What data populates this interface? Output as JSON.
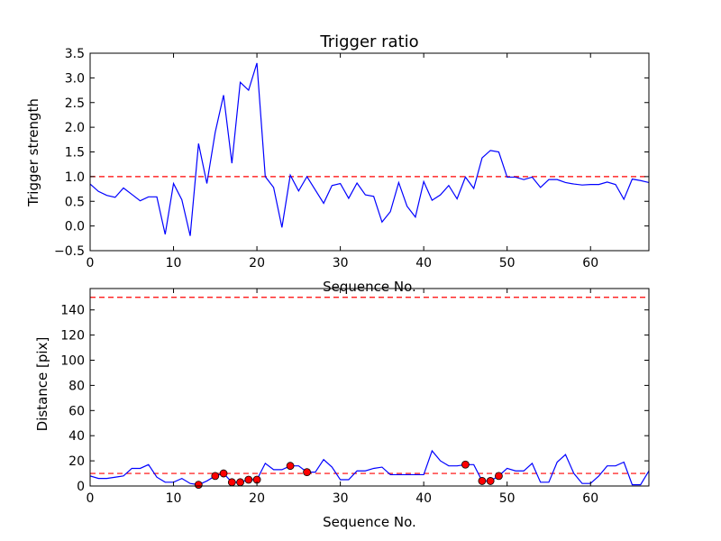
{
  "chart_data": [
    {
      "type": "line",
      "title": "Trigger ratio",
      "xlabel": "Sequence No.",
      "ylabel": "Trigger strength",
      "xlim": [
        0,
        67
      ],
      "ylim": [
        -0.5,
        3.5
      ],
      "xticks": [
        "0",
        "10",
        "20",
        "30",
        "40",
        "50",
        "60"
      ],
      "yticks": [
        "−0.5",
        "0.0",
        "0.5",
        "1.0",
        "1.5",
        "2.0",
        "2.5",
        "3.0",
        "3.5"
      ],
      "grid": false,
      "series": [
        {
          "color": "#0000ff",
          "x": [
            0,
            1,
            2,
            3,
            4,
            5,
            6,
            7,
            8,
            9,
            10,
            11,
            12,
            13,
            14,
            15,
            16,
            17,
            18,
            19,
            20,
            21,
            22,
            23,
            24,
            25,
            26,
            27,
            28,
            29,
            30,
            31,
            32,
            33,
            34,
            35,
            36,
            37,
            38,
            39,
            40,
            41,
            42,
            43,
            44,
            45,
            46,
            47,
            48,
            49,
            50,
            51,
            52,
            53,
            54,
            55,
            56,
            57,
            58,
            59,
            60,
            61,
            62,
            63,
            64,
            65,
            66,
            67
          ],
          "y": [
            0.85,
            0.7,
            0.62,
            0.58,
            0.77,
            0.64,
            0.51,
            0.59,
            0.59,
            -0.17,
            0.86,
            0.53,
            -0.2,
            1.67,
            0.86,
            1.9,
            2.65,
            1.27,
            2.91,
            2.75,
            3.3,
            1.0,
            0.78,
            -0.03,
            1.03,
            0.71,
            1.0,
            0.73,
            0.46,
            0.82,
            0.86,
            0.56,
            0.87,
            0.63,
            0.6,
            0.08,
            0.29,
            0.88,
            0.4,
            0.18,
            0.9,
            0.52,
            0.63,
            0.82,
            0.55,
            0.99,
            0.76,
            1.38,
            1.53,
            1.5,
            0.99,
            0.99,
            0.94,
            0.99,
            0.78,
            0.94,
            0.94,
            0.88,
            0.85,
            0.83,
            0.84,
            0.84,
            0.89,
            0.84,
            0.54,
            0.95,
            0.92,
            0.88
          ]
        }
      ],
      "reference_lines": [
        {
          "y": 1.0,
          "color": "#ff0000",
          "style": "dashed"
        }
      ]
    },
    {
      "type": "line",
      "title": "",
      "xlabel": "Sequence No.",
      "ylabel": "Distance [pix]",
      "xlim": [
        0,
        67
      ],
      "ylim": [
        0,
        157
      ],
      "xticks": [
        "0",
        "10",
        "20",
        "30",
        "40",
        "50",
        "60"
      ],
      "yticks": [
        "0",
        "20",
        "40",
        "60",
        "80",
        "100",
        "120",
        "140"
      ],
      "grid": false,
      "series": [
        {
          "color": "#0000ff",
          "x": [
            0,
            1,
            2,
            3,
            4,
            5,
            6,
            7,
            8,
            9,
            10,
            11,
            12,
            13,
            14,
            15,
            16,
            17,
            18,
            19,
            20,
            21,
            22,
            23,
            24,
            25,
            26,
            27,
            28,
            29,
            30,
            31,
            32,
            33,
            34,
            35,
            36,
            37,
            38,
            39,
            40,
            41,
            42,
            43,
            44,
            45,
            46,
            47,
            48,
            49,
            50,
            51,
            52,
            53,
            54,
            55,
            56,
            57,
            58,
            59,
            60,
            61,
            62,
            63,
            64,
            65,
            66,
            67
          ],
          "y": [
            8,
            6,
            6,
            7,
            8,
            14,
            14,
            17,
            7,
            3,
            3,
            6,
            2,
            1,
            4,
            8,
            10,
            3,
            3,
            5,
            5,
            18,
            13,
            13,
            16,
            16,
            11,
            11,
            21,
            15,
            5,
            5,
            12,
            12,
            14,
            15,
            9,
            9,
            9,
            9,
            9,
            28,
            20,
            16,
            16,
            17,
            17,
            4,
            4,
            8,
            14,
            12,
            12,
            18,
            3,
            3,
            19,
            25,
            10,
            2,
            2,
            8,
            16,
            16,
            19,
            1,
            1,
            12
          ]
        }
      ],
      "markers": {
        "color": "#ff0000",
        "x": [
          13,
          15,
          16,
          17,
          18,
          19,
          20,
          24,
          26,
          45,
          47,
          48,
          49
        ],
        "y": [
          1,
          8,
          10,
          3,
          3,
          5,
          5,
          16,
          11,
          17,
          4,
          4,
          8
        ]
      },
      "reference_lines": [
        {
          "y": 150,
          "color": "#ff0000",
          "style": "dashed"
        },
        {
          "y": 10,
          "color": "#ff0000",
          "style": "dashed"
        }
      ]
    }
  ]
}
